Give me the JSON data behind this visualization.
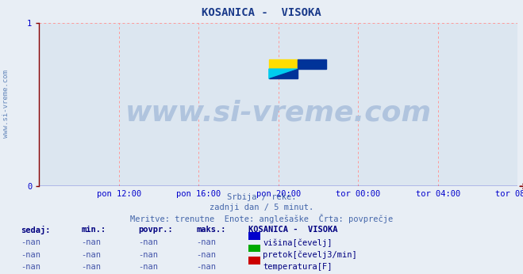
{
  "title": "KOSANICA -  VISOKA",
  "title_color": "#1a3a8a",
  "bg_color": "#e8eef5",
  "plot_bg_color": "#dce6f0",
  "grid_color": "#ff9999",
  "axis_line_color": "#0000cc",
  "left_spine_color": "#880000",
  "xlim": [
    0,
    288
  ],
  "ylim": [
    0,
    1.0
  ],
  "yticks": [
    0,
    1
  ],
  "xtick_labels": [
    "pon 12:00",
    "pon 16:00",
    "pon 20:00",
    "tor 00:00",
    "tor 04:00",
    "tor 08:00"
  ],
  "xtick_positions": [
    48,
    96,
    144,
    192,
    240,
    288
  ],
  "watermark": "www.si-vreme.com",
  "watermark_color": "#b0c4de",
  "side_text": "www.si-vreme.com",
  "side_text_color": "#6688bb",
  "subtitle1": "Srbija / reke.",
  "subtitle2": "zadnji dan / 5 minut.",
  "subtitle3": "Meritve: trenutne  Enote: anglešaške  Črta: povprečje",
  "subtitle_color": "#4466aa",
  "table_header": [
    "sedaj:",
    "min.:",
    "povpr.:",
    "maks.:",
    "KOSANICA -  VISOKA"
  ],
  "table_rows": [
    [
      "-nan",
      "-nan",
      "-nan",
      "-nan",
      "višina[čevelj]"
    ],
    [
      "-nan",
      "-nan",
      "-nan",
      "-nan",
      "pretok[čevelj3/min]"
    ],
    [
      "-nan",
      "-nan",
      "-nan",
      "-nan",
      "temperatura[F]"
    ]
  ],
  "legend_colors": [
    "#0000cc",
    "#00aa00",
    "#cc0000"
  ],
  "table_color": "#000080",
  "nan_color": "#4455aa"
}
